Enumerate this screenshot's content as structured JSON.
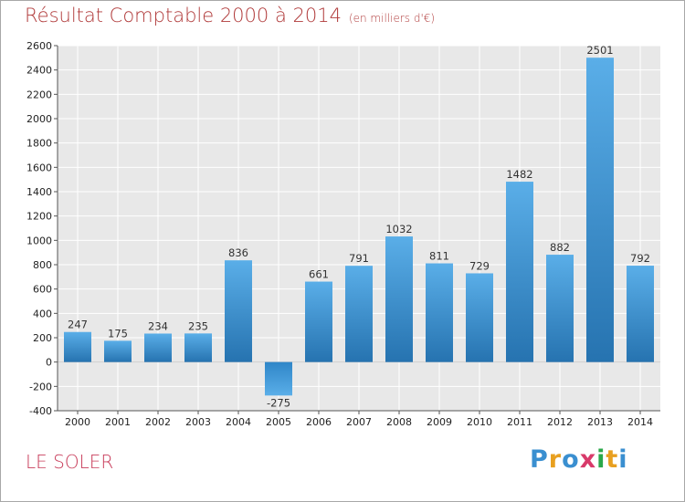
{
  "chart_data": {
    "type": "bar",
    "title": "Résultat Comptable 2000 à 2014",
    "subtitle": "(en milliers d'€)",
    "categories": [
      "2000",
      "2001",
      "2002",
      "2003",
      "2004",
      "2005",
      "2006",
      "2007",
      "2008",
      "2009",
      "2010",
      "2011",
      "2012",
      "2013",
      "2014"
    ],
    "values": [
      247,
      175,
      234,
      235,
      836,
      -275,
      661,
      791,
      1032,
      811,
      729,
      1482,
      882,
      2501,
      792
    ],
    "ylim": [
      -400,
      2600
    ],
    "yticks": [
      -400,
      -200,
      0,
      200,
      400,
      600,
      800,
      1000,
      1200,
      1400,
      1600,
      1800,
      2000,
      2200,
      2400,
      2600
    ],
    "grid": true,
    "xlabel": "",
    "ylabel": ""
  },
  "footer": {
    "place": "LE SOLER",
    "brand_letters": [
      "P",
      "r",
      "o",
      "x",
      "i",
      "t",
      "i"
    ],
    "brand_colors": [
      "#3a8fd0",
      "#e8a020",
      "#3a8fd0",
      "#d83a6a",
      "#2aa84a",
      "#e8a020",
      "#3a8fd0"
    ]
  },
  "colors": {
    "bar_top": "#5aaee8",
    "bar_bottom": "#2673b0",
    "title": "#b03a3a",
    "plot_bg": "#e8e8e8"
  }
}
